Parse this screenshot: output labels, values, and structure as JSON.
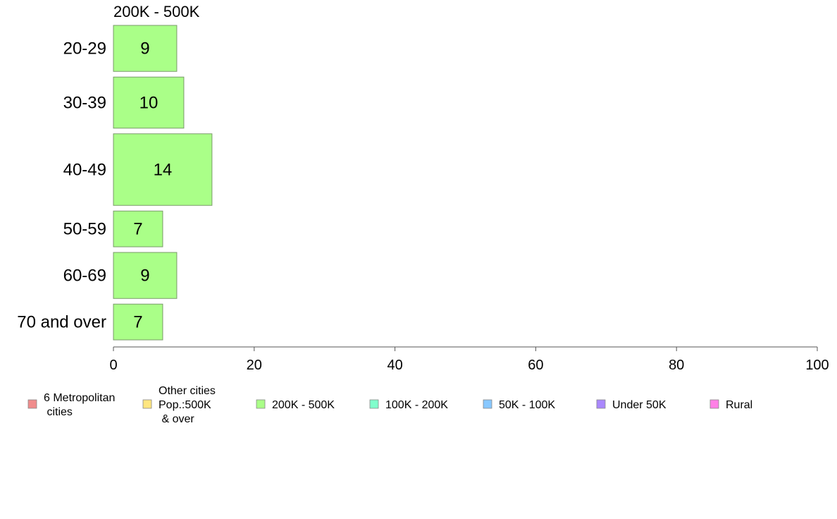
{
  "chart_data": {
    "type": "bar",
    "orientation": "horizontal",
    "panel_title": "200K - 500K",
    "categories": [
      "20-29",
      "30-39",
      "40-49",
      "50-59",
      "60-69",
      "70 and over"
    ],
    "series": [
      {
        "name": "200K - 500K",
        "color": "#aaff88",
        "values": [
          9,
          10,
          14,
          7,
          9,
          7
        ]
      }
    ],
    "xlim": [
      0,
      100
    ],
    "xticks": [
      "0",
      "20",
      "40",
      "60",
      "80",
      "100"
    ],
    "grid": false,
    "legend_position": "bottom",
    "legend": [
      {
        "lines": [
          "6 Metropolitan",
          " cities"
        ],
        "color": "#f08c8c"
      },
      {
        "lines": [
          "Other cities",
          "Pop.:500K",
          " & over"
        ],
        "color": "#ffe680"
      },
      {
        "lines": [
          "200K - 500K"
        ],
        "color": "#aaff88"
      },
      {
        "lines": [
          "100K - 200K"
        ],
        "color": "#80ffcc"
      },
      {
        "lines": [
          "50K - 100K"
        ],
        "color": "#88c8ff"
      },
      {
        "lines": [
          "Under 50K"
        ],
        "color": "#aa88ff"
      },
      {
        "lines": [
          "Rural"
        ],
        "color": "#ff80e6"
      }
    ]
  }
}
